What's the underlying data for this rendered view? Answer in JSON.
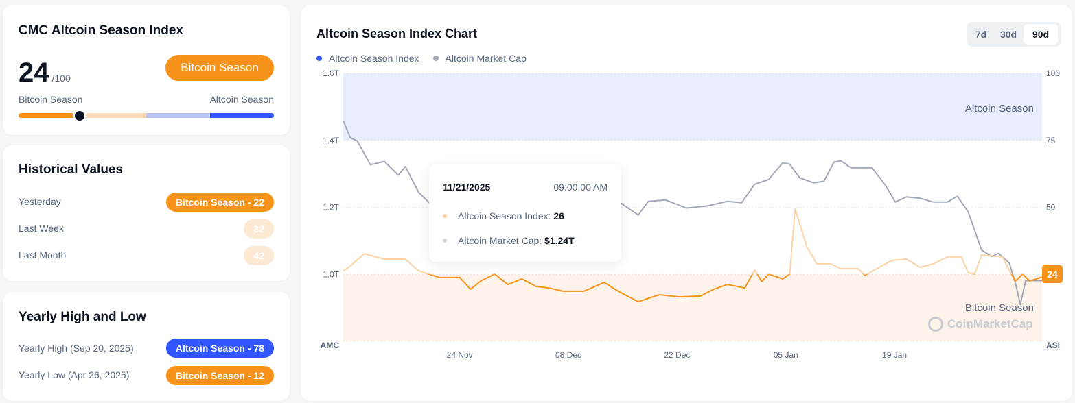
{
  "index_card": {
    "title": "CMC Altcoin Season Index",
    "value": "24",
    "max": "/100",
    "status": "Bitcoin Season",
    "left_label": "Bitcoin Season",
    "right_label": "Altcoin Season",
    "position_pct": 24
  },
  "historical": {
    "title": "Historical Values",
    "rows": [
      {
        "label": "Yesterday",
        "badge": "Bitcoin Season - 22"
      },
      {
        "label": "Last Week",
        "badge": "32"
      },
      {
        "label": "Last Month",
        "badge": "42"
      }
    ]
  },
  "yearly": {
    "title": "Yearly High and Low",
    "high": {
      "label": "Yearly High",
      "date": "(Sep 20, 2025)",
      "badge": "Altcoin Season - 78"
    },
    "low": {
      "label": "Yearly Low",
      "date": "(Apr 26, 2025)",
      "badge": "Bitcoin Season - 12"
    }
  },
  "range_buttons": [
    "7d",
    "30d",
    "90d"
  ],
  "active_range": "90d",
  "tooltip": {
    "date": "11/21/2025",
    "time": "09:00:00 AM",
    "asi_label": "Altcoin Season Index:",
    "asi_value": "26",
    "amc_label": "Altcoin Market Cap:",
    "amc_value": "$1.24T"
  },
  "watermark": "CoinMarketCap",
  "colors": {
    "orange": "#f7931a",
    "orange_light": "#fbd3a6",
    "blue": "#3156ff",
    "gray": "#a3a8b8"
  },
  "chart_data": {
    "type": "line",
    "title": "Altcoin Season Index Chart",
    "legend": [
      "Altcoin Season Index",
      "Altcoin Market Cap"
    ],
    "legend_placement": "top-left",
    "left_axis_label": "AMC",
    "right_axis_label": "ASI",
    "left_ticks": [
      "1.6T",
      "1.4T",
      "1.2T",
      "1.0T"
    ],
    "right_ticks": [
      "100",
      "75",
      "50"
    ],
    "left_ylim": [
      0.8,
      1.6
    ],
    "right_ylim": [
      0,
      100
    ],
    "x_range_days": [
      0,
      90
    ],
    "x_ticks": [
      {
        "day": 15,
        "label": "24 Nov"
      },
      {
        "day": 29,
        "label": "08 Dec"
      },
      {
        "day": 43,
        "label": "22 Dec"
      },
      {
        "day": 57,
        "label": "05 Jan"
      },
      {
        "day": 71,
        "label": "19 Jan"
      }
    ],
    "bands": [
      {
        "label": "Altcoin Season",
        "from": 75,
        "to": 100
      },
      {
        "label": "Bitcoin Season",
        "from": 0,
        "to": 25
      }
    ],
    "current_value": "24",
    "asi": [
      [
        0,
        26.3
      ],
      [
        0.9,
        28.1
      ],
      [
        2.7,
        32.7
      ],
      [
        5.3,
        30.7
      ],
      [
        8,
        30.7
      ],
      [
        9.7,
        26.3
      ],
      [
        12.4,
        23.8
      ],
      [
        15,
        23.8
      ],
      [
        16.4,
        19.4
      ],
      [
        17.7,
        22.5
      ],
      [
        19.5,
        25.1
      ],
      [
        21.2,
        21.2
      ],
      [
        23,
        23.3
      ],
      [
        24.8,
        20.5
      ],
      [
        26.5,
        19.9
      ],
      [
        28.3,
        18.7
      ],
      [
        31,
        18.7
      ],
      [
        33.6,
        22
      ],
      [
        35.4,
        18.7
      ],
      [
        38,
        14.8
      ],
      [
        40.7,
        17.4
      ],
      [
        43.3,
        16.6
      ],
      [
        46,
        16.9
      ],
      [
        47.7,
        19.4
      ],
      [
        49.5,
        21.2
      ],
      [
        51.7,
        19.9
      ],
      [
        53,
        26.6
      ],
      [
        53.9,
        22.3
      ],
      [
        54.8,
        25.1
      ],
      [
        56.6,
        23.3
      ],
      [
        57.5,
        25.1
      ],
      [
        58.2,
        49.4
      ],
      [
        59.7,
        35.3
      ],
      [
        61,
        28.9
      ],
      [
        62.8,
        28.9
      ],
      [
        64.1,
        27.1
      ],
      [
        66.3,
        27.1
      ],
      [
        67.2,
        24.6
      ],
      [
        69,
        27.6
      ],
      [
        70.7,
        30.2
      ],
      [
        72.5,
        30.7
      ],
      [
        74.3,
        27.6
      ],
      [
        76,
        28.9
      ],
      [
        77.8,
        31.5
      ],
      [
        79.6,
        31.5
      ],
      [
        80.5,
        25.6
      ],
      [
        81.3,
        25.1
      ],
      [
        82.2,
        32.2
      ],
      [
        84.9,
        31.5
      ],
      [
        85.8,
        26.3
      ],
      [
        86.6,
        22.5
      ],
      [
        87.5,
        25.1
      ],
      [
        88.4,
        22.5
      ],
      [
        90,
        24
      ]
    ],
    "amc": [
      [
        0,
        1.459
      ],
      [
        0.9,
        1.408
      ],
      [
        1.8,
        1.398
      ],
      [
        3.5,
        1.327
      ],
      [
        5.3,
        1.337
      ],
      [
        7.1,
        1.296
      ],
      [
        8,
        1.322
      ],
      [
        9.7,
        1.245
      ],
      [
        11.5,
        1.204
      ],
      [
        15,
        1.21
      ],
      [
        19,
        1.23
      ],
      [
        23,
        1.2
      ],
      [
        27,
        1.22
      ],
      [
        31,
        1.2
      ],
      [
        35.4,
        1.218
      ],
      [
        38,
        1.177
      ],
      [
        39.3,
        1.218
      ],
      [
        41.5,
        1.222
      ],
      [
        44.2,
        1.198
      ],
      [
        46.9,
        1.204
      ],
      [
        49.5,
        1.218
      ],
      [
        51.3,
        1.214
      ],
      [
        53,
        1.269
      ],
      [
        54.8,
        1.283
      ],
      [
        56.6,
        1.333
      ],
      [
        57.5,
        1.329
      ],
      [
        58.8,
        1.288
      ],
      [
        60.6,
        1.273
      ],
      [
        61.9,
        1.278
      ],
      [
        63.2,
        1.335
      ],
      [
        64.1,
        1.339
      ],
      [
        65.4,
        1.318
      ],
      [
        68.1,
        1.318
      ],
      [
        69.8,
        1.267
      ],
      [
        71.1,
        1.216
      ],
      [
        72.5,
        1.231
      ],
      [
        74.3,
        1.227
      ],
      [
        76,
        1.216
      ],
      [
        77.8,
        1.216
      ],
      [
        79.1,
        1.233
      ],
      [
        80.5,
        1.186
      ],
      [
        82.2,
        1.073
      ],
      [
        83.5,
        1.053
      ],
      [
        84.4,
        1.063
      ],
      [
        85.8,
        1.033
      ],
      [
        86.6,
        0.971
      ],
      [
        87.2,
        0.91
      ],
      [
        87.9,
        0.981
      ],
      [
        90,
        0.981
      ]
    ]
  }
}
